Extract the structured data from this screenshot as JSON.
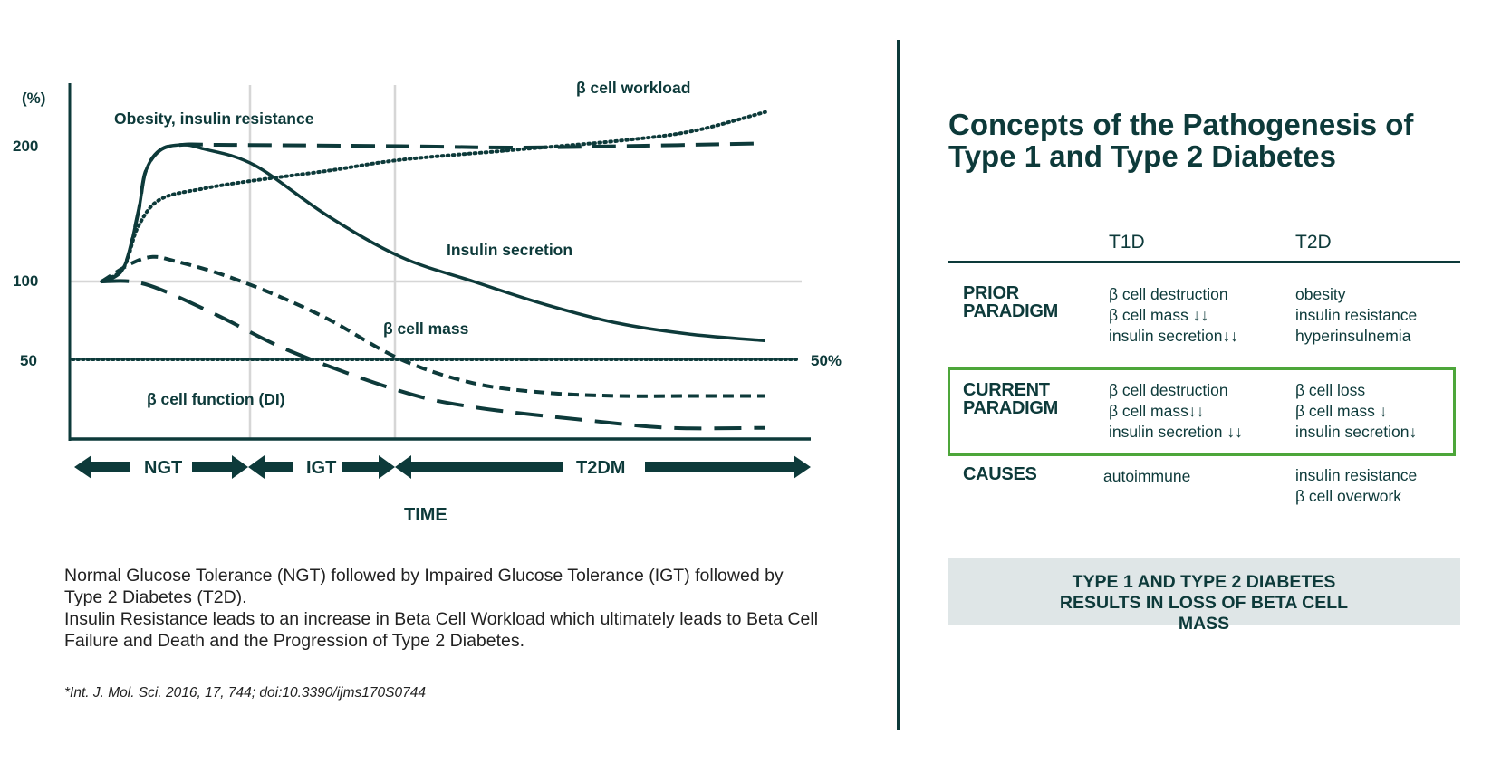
{
  "chart_data": {
    "type": "line",
    "title": "",
    "xlabel": "TIME",
    "ylabel": "(%)",
    "xlim": [
      0,
      100
    ],
    "y_ticks": [
      {
        "value": 50,
        "label": "50"
      },
      {
        "value": 100,
        "label": "100"
      },
      {
        "value": 200,
        "label": "200"
      }
    ],
    "reference_line": {
      "value": 50,
      "label": "50%"
    },
    "stages": [
      {
        "label": "NGT",
        "from": 0,
        "to": 25
      },
      {
        "label": "IGT",
        "from": 25,
        "to": 45
      },
      {
        "label": "T2DM",
        "from": 45,
        "to": 100
      }
    ],
    "series": [
      {
        "name": "Obesity, insulin resistance",
        "style": "long-dash",
        "points": [
          [
            4,
            100
          ],
          [
            7,
            110
          ],
          [
            9,
            150
          ],
          [
            10,
            180
          ],
          [
            12,
            196
          ],
          [
            15,
            200
          ],
          [
            20,
            200
          ],
          [
            45,
            199
          ],
          [
            60,
            198
          ],
          [
            75,
            199
          ],
          [
            94,
            201
          ]
        ]
      },
      {
        "name": "β cell workload",
        "style": "dotted",
        "points": [
          [
            4,
            100
          ],
          [
            7,
            110
          ],
          [
            9,
            140
          ],
          [
            12,
            160
          ],
          [
            18,
            168
          ],
          [
            25,
            174
          ],
          [
            35,
            181
          ],
          [
            45,
            189
          ],
          [
            60,
            196
          ],
          [
            75,
            203
          ],
          [
            85,
            210
          ],
          [
            95,
            224
          ]
        ]
      },
      {
        "name": "Insulin secretion",
        "style": "solid",
        "points": [
          [
            4,
            100
          ],
          [
            7,
            110
          ],
          [
            9,
            150
          ],
          [
            10,
            180
          ],
          [
            12,
            196
          ],
          [
            15,
            200
          ],
          [
            18,
            197
          ],
          [
            25,
            185
          ],
          [
            35,
            148
          ],
          [
            45,
            118
          ],
          [
            55,
            100
          ],
          [
            65,
            85
          ],
          [
            75,
            73
          ],
          [
            85,
            66
          ],
          [
            95,
            62
          ]
        ]
      },
      {
        "name": "β cell mass",
        "style": "short-dash",
        "points": [
          [
            4,
            100
          ],
          [
            8,
            113
          ],
          [
            11,
            118
          ],
          [
            14,
            115
          ],
          [
            20,
            106
          ],
          [
            27,
            93
          ],
          [
            35,
            76
          ],
          [
            45,
            50
          ],
          [
            55,
            35
          ],
          [
            65,
            29
          ],
          [
            75,
            27
          ],
          [
            85,
            27
          ],
          [
            95,
            27
          ]
        ]
      },
      {
        "name": "β cell function (DI)",
        "style": "long-dash",
        "points": [
          [
            4,
            100
          ],
          [
            8,
            100
          ],
          [
            12,
            95
          ],
          [
            20,
            78
          ],
          [
            30,
            55
          ],
          [
            45,
            30
          ],
          [
            55,
            20
          ],
          [
            70,
            12
          ],
          [
            82,
            7
          ],
          [
            95,
            7
          ]
        ]
      }
    ],
    "annotations": [
      "Obesity, insulin resistance",
      "β cell workload",
      "Insulin secretion",
      "β cell mass",
      "β cell function (DI)"
    ]
  },
  "caption": {
    "line1": "Normal Glucose Tolerance (NGT) followed by Impaired Glucose Tolerance (IGT) followed by Type 2 Diabetes (T2D).",
    "line2": "Insulin Resistance leads to an increase in Beta Cell Workload which ultimately leads to Beta Cell Failure and Death and the Progression of Type 2 Diabetes."
  },
  "citation": "*Int. J. Mol. Sci. 2016, 17, 744; doi:10.3390/ijms170S0744",
  "panel": {
    "title": "Concepts of the Pathogenesis of Type 1 and Type 2 Diabetes",
    "columns": [
      "T1D",
      "T2D"
    ],
    "rows": [
      {
        "label": "PRIOR PARADIGM",
        "t1d": [
          "β cell destruction",
          "β cell mass ↓↓",
          "insulin secretion↓↓"
        ],
        "t2d": [
          "obesity",
          "insulin resistance",
          "hyperinsulnemia"
        ]
      },
      {
        "label": "CURRENT PARADIGM",
        "t1d": [
          "β cell destruction",
          "β cell mass↓↓",
          "insulin secretion ↓↓"
        ],
        "t2d": [
          "β cell loss",
          "β cell mass ↓",
          "insulin secretion↓"
        ]
      },
      {
        "label": "CAUSES",
        "t1d": [
          "autoimmune"
        ],
        "t2d": [
          "insulin resistance",
          "β cell overwork"
        ]
      }
    ],
    "banner": "TYPE 1 AND TYPE 2 DIABETES RESULTS IN LOSS OF BETA CELL MASS"
  },
  "colors": {
    "ink": "#0d3a3a",
    "grid": "#d6d6d6",
    "highlight": "#4da63a",
    "banner_bg": "#dfe6e7"
  }
}
